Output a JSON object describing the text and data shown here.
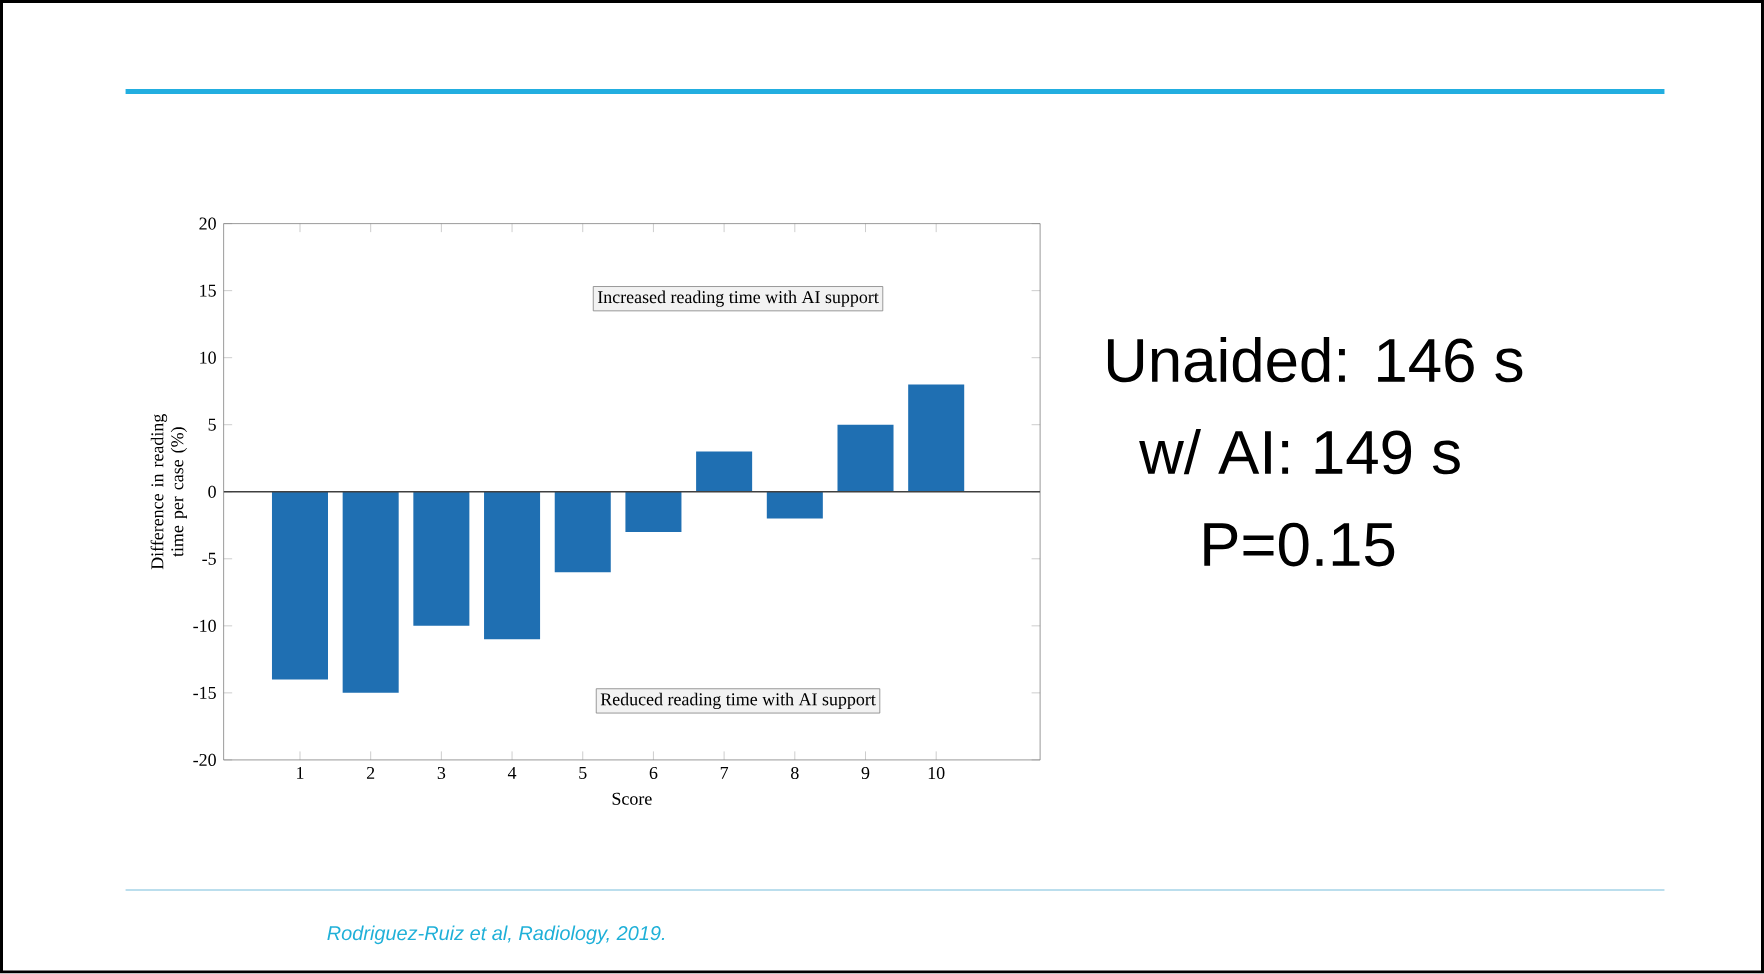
{
  "chart_data": {
    "type": "bar",
    "xlabel": "Score",
    "ylabel": "Difference in reading time per case (%)",
    "categories": [
      "1",
      "2",
      "3",
      "4",
      "5",
      "6",
      "7",
      "8",
      "9",
      "10"
    ],
    "values": [
      -14,
      -15,
      -10,
      -11,
      -6,
      -3,
      3,
      -2,
      5,
      8
    ],
    "color": "#1f6fb2",
    "ylim": [
      -20,
      20
    ],
    "yticks": [
      -20,
      -15,
      -10,
      -5,
      0,
      5,
      10,
      15,
      20
    ],
    "ref_lines": [
      {
        "axis": "y",
        "value": 0,
        "color": "#404040"
      }
    ],
    "annotations": [
      "Increased reading time with AI support",
      "Reduced reading time with AI support",
      "Unaided: 146 s",
      "w/ AI: 149 s",
      "P=0.15",
      "Rodriguez-Ruiz et al, Radiology, 2019."
    ]
  }
}
